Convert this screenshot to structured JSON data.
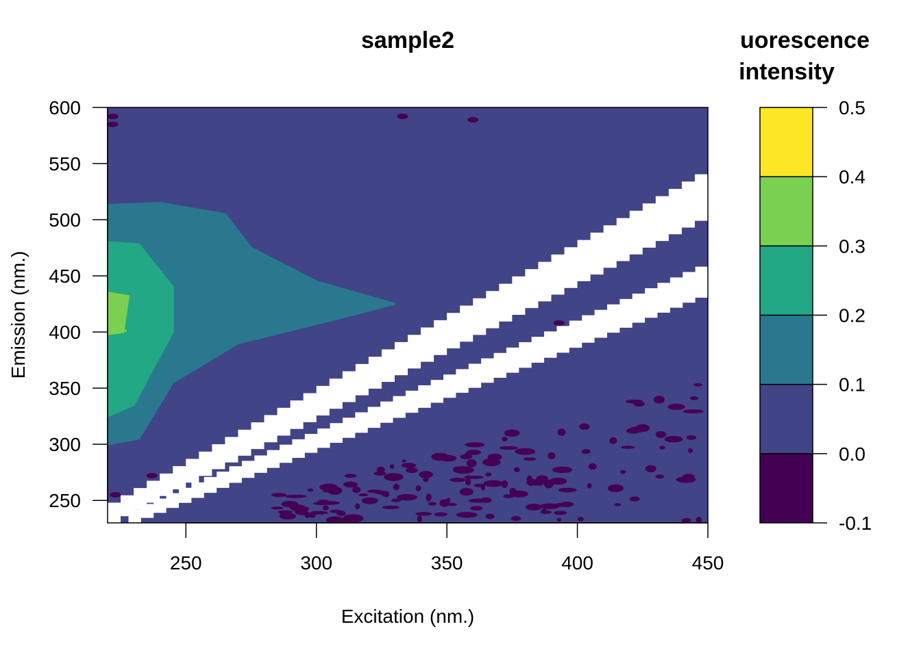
{
  "chart_data": {
    "type": "heatmap",
    "title": "sample2",
    "xlabel": "Excitation (nm.)",
    "ylabel": "Emission (nm.)",
    "xlim": [
      220,
      450
    ],
    "ylim": [
      230,
      600
    ],
    "x_ticks": [
      "250",
      "300",
      "350",
      "400",
      "450"
    ],
    "y_ticks": [
      "250",
      "300",
      "350",
      "400",
      "450",
      "500",
      "550",
      "600"
    ],
    "legend": {
      "title_line1": "uorescence",
      "title_line2": "intensity",
      "breaks": [
        -0.1,
        0.0,
        0.1,
        0.2,
        0.3,
        0.4,
        0.5
      ],
      "break_labels": [
        "-0.1",
        "0.0",
        "0.1",
        "0.2",
        "0.3",
        "0.4",
        "0.5"
      ],
      "colors": [
        "#440154",
        "#414487",
        "#2A788E",
        "#22A884",
        "#7AD151",
        "#FDE725"
      ]
    },
    "scatter_bands": [
      {
        "excitation": [
          220,
          450
        ],
        "emission_low": [
          230,
          505
        ],
        "emission_high": [
          248,
          547
        ]
      },
      {
        "excitation": [
          228,
          450
        ],
        "emission_low": [
          230,
          435
        ],
        "emission_high": [
          242,
          463
        ]
      }
    ],
    "regions": [
      {
        "level": 0.1,
        "description_points": [
          [
            220,
            513
          ],
          [
            240,
            515
          ],
          [
            265,
            505
          ],
          [
            275,
            475
          ],
          [
            300,
            445
          ],
          [
            330,
            425
          ],
          [
            305,
            410
          ],
          [
            270,
            390
          ],
          [
            245,
            355
          ],
          [
            232,
            305
          ],
          [
            220,
            300
          ]
        ]
      },
      {
        "level": 0.2,
        "description_points": [
          [
            220,
            480
          ],
          [
            232,
            478
          ],
          [
            245,
            440
          ],
          [
            245,
            400
          ],
          [
            238,
            370
          ],
          [
            230,
            335
          ],
          [
            220,
            325
          ]
        ]
      },
      {
        "level": 0.3,
        "description_points": [
          [
            220,
            435
          ],
          [
            228,
            432
          ],
          [
            226,
            400
          ],
          [
            220,
            398
          ]
        ]
      }
    ]
  }
}
